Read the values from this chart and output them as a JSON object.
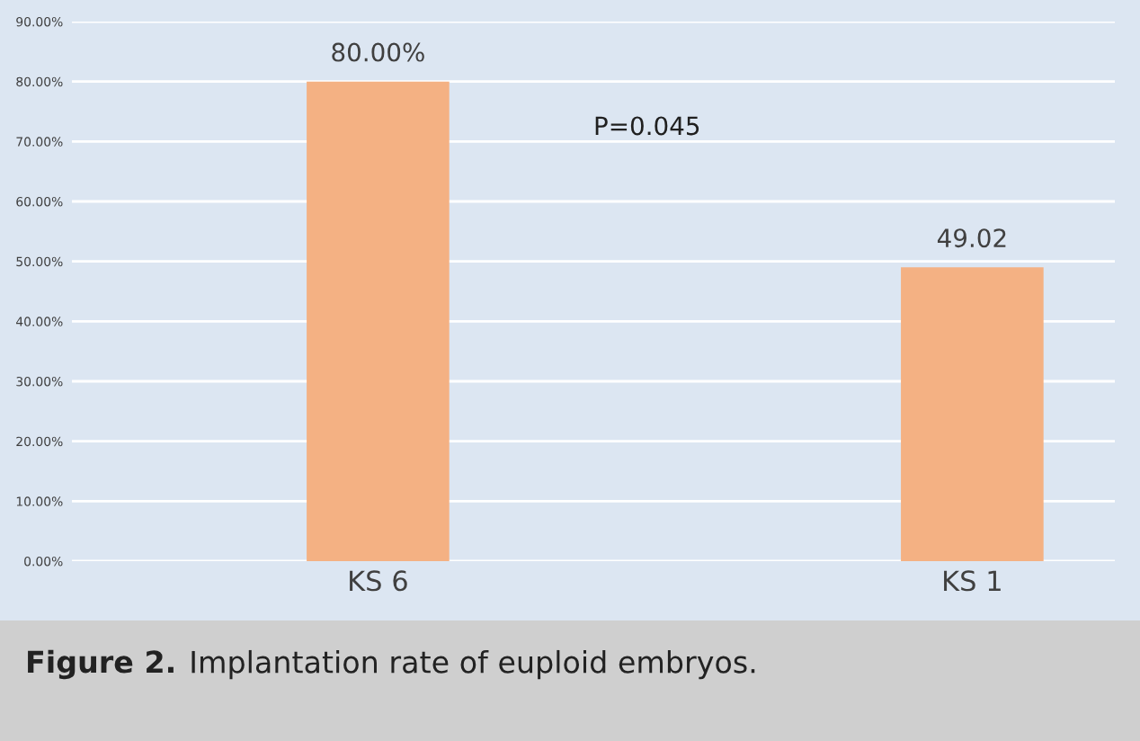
{
  "chart_data": {
    "type": "bar",
    "categories": [
      "KS 6",
      "KS 1"
    ],
    "values": [
      80,
      49.02
    ],
    "color": "#f4b183",
    "value_labels": [
      "80.00%",
      "49.02"
    ],
    "ylim": [
      0,
      90
    ],
    "yticks": [
      {
        "value": 0,
        "label": "0.00%"
      },
      {
        "value": 10,
        "label": "10.00%"
      },
      {
        "value": 20,
        "label": "20.00%"
      },
      {
        "value": 30,
        "label": "30.00%"
      },
      {
        "value": 40,
        "label": "40.00%"
      },
      {
        "value": 50,
        "label": "50.00%"
      },
      {
        "value": 60,
        "label": "60.00%"
      },
      {
        "value": 70,
        "label": "70.00%"
      },
      {
        "value": 80,
        "label": "80.00%"
      },
      {
        "value": 90,
        "label": "90.00%"
      }
    ],
    "grid": "y",
    "annotations": [
      "P=0.045",
      "Figure 2.",
      "Implantation rate of euploid embryos."
    ]
  }
}
